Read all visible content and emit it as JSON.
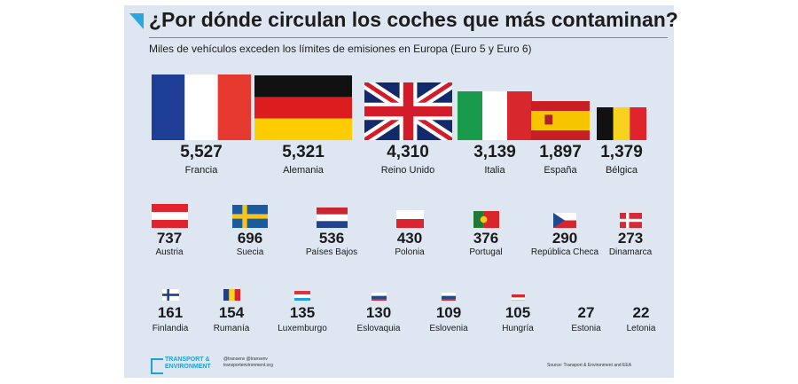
{
  "header": {
    "title": "¿Por dónde circulan los coches que más contaminan?",
    "subtitle": "Miles de vehículos exceden los límites de emisiones en Europa (Euro 5 y Euro 6)"
  },
  "chart_data": {
    "type": "pictorial-bar",
    "title": "¿Por dónde circulan los coches que más contaminan?",
    "subtitle": "Miles de vehículos exceden los límites de emisiones en Europa (Euro 5 y Euro 6)",
    "unit": "miles de vehículos",
    "categories": [
      "Francia",
      "Alemania",
      "Reino Unido",
      "Italia",
      "España",
      "Bélgica",
      "Austria",
      "Suecia",
      "Países Bajos",
      "Polonia",
      "Portugal",
      "República Checa",
      "Dinamarca",
      "Finlandia",
      "Rumanía",
      "Luxemburgo",
      "Eslovaquia",
      "Eslovenia",
      "Hungría",
      "Estonia",
      "Letonia"
    ],
    "values": [
      5527,
      5321,
      4310,
      3139,
      1897,
      1379,
      737,
      696,
      536,
      430,
      376,
      290,
      273,
      161,
      154,
      135,
      130,
      109,
      105,
      27,
      22
    ],
    "value_labels": [
      "5,527",
      "5,321",
      "4,310",
      "3,139",
      "1,897",
      "1,379",
      "737",
      "696",
      "536",
      "430",
      "376",
      "290",
      "273",
      "161",
      "154",
      "135",
      "130",
      "109",
      "105",
      "27",
      "22"
    ],
    "encoding": "flag size proportional to value"
  },
  "flags": {
    "Francia": {
      "type": "v3",
      "colors": [
        "#1f3f96",
        "#ffffff",
        "#e63a30"
      ]
    },
    "Alemania": {
      "type": "h3",
      "colors": [
        "#111111",
        "#dd1d1d",
        "#ffcc00"
      ]
    },
    "Reino Unido": {
      "type": "uk",
      "colors": [
        "#12296b",
        "#ffffff",
        "#d21c2a"
      ]
    },
    "Italia": {
      "type": "v3",
      "colors": [
        "#1a9b4b",
        "#ffffff",
        "#d8282e"
      ]
    },
    "España": {
      "type": "es",
      "colors": [
        "#c81e25",
        "#f7c400",
        "#c81e25"
      ]
    },
    "Bélgica": {
      "type": "v3",
      "colors": [
        "#111111",
        "#f8d21c",
        "#e0242b"
      ]
    },
    "Austria": {
      "type": "h3",
      "colors": [
        "#e0232c",
        "#ffffff",
        "#e0232c"
      ]
    },
    "Suecia": {
      "type": "nordic",
      "colors": [
        "#1a5a9e",
        "#f6c41b"
      ]
    },
    "Países Bajos": {
      "type": "h3",
      "colors": [
        "#c9272f",
        "#ffffff",
        "#22438f"
      ]
    },
    "Polonia": {
      "type": "h2",
      "colors": [
        "#ffffff",
        "#dc2431"
      ]
    },
    "Portugal": {
      "type": "pt",
      "colors": [
        "#1f7a36",
        "#d8262b"
      ]
    },
    "República Checa": {
      "type": "cz",
      "colors": [
        "#ffffff",
        "#d8262e",
        "#1c4a8c"
      ]
    },
    "Dinamarca": {
      "type": "nordic",
      "colors": [
        "#d52b36",
        "#ffffff"
      ]
    },
    "Finlandia": {
      "type": "nordic",
      "colors": [
        "#ffffff",
        "#1e3f8f"
      ]
    },
    "Rumanía": {
      "type": "v3",
      "colors": [
        "#1e3f8f",
        "#f8d21c",
        "#d8262e"
      ]
    },
    "Luxemburgo": {
      "type": "h3",
      "colors": [
        "#e0333c",
        "#ffffff",
        "#1ea1db"
      ]
    },
    "Eslovaquia": {
      "type": "h3",
      "colors": [
        "#ffffff",
        "#1c4a8c",
        "#d8262e"
      ]
    },
    "Eslovenia": {
      "type": "h3",
      "colors": [
        "#ffffff",
        "#1c4a8c",
        "#d8262e"
      ]
    },
    "Hungría": {
      "type": "h3",
      "colors": [
        "#d8262e",
        "#ffffff",
        "#3b8a3e"
      ]
    },
    "Estonia": {
      "type": "h3",
      "colors": [
        "#1e73be",
        "#111111",
        "#ffffff"
      ]
    },
    "Letonia": {
      "type": "h3",
      "colors": [
        "#a3282f",
        "#ffffff",
        "#a3282f"
      ]
    }
  },
  "footer": {
    "brand_line1": "TRANSPORT &",
    "brand_line2": "ENVIRONMENT",
    "social_line1": "@transenv   @transenv",
    "social_line2": "transportenvironment.org",
    "source": "Source: Transport & Environment and EEA"
  }
}
